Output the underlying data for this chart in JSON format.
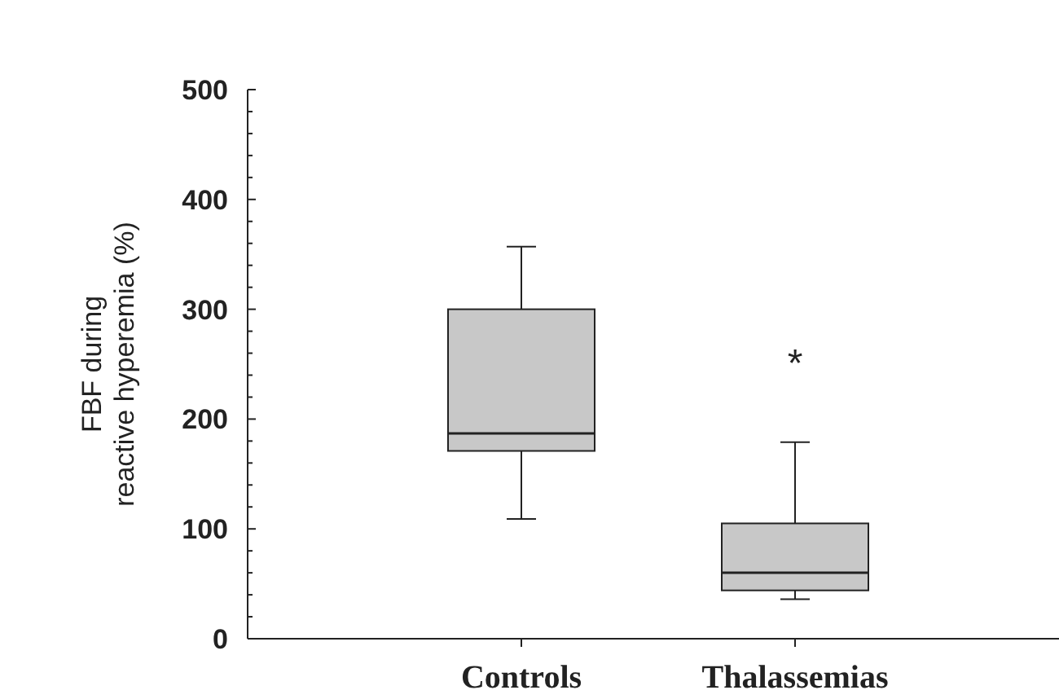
{
  "chart_data": {
    "type": "box",
    "ylabel": "FBF during\nreactive hyperemia (%)",
    "categories": [
      "Controls",
      "Thalassemias"
    ],
    "boxes": [
      {
        "low": 109,
        "q1": 171,
        "median": 187,
        "q3": 300,
        "high": 357
      },
      {
        "low": 36,
        "q1": 44,
        "median": 60,
        "q3": 105,
        "high": 179
      }
    ],
    "color": "#c8c8c8",
    "ylim": [
      0,
      500
    ],
    "yticks": [
      0,
      {
        "value": 20,
        "label": null
      },
      {
        "value": 40,
        "label": null
      },
      {
        "value": 60,
        "label": null
      },
      {
        "value": 80,
        "label": null
      },
      100,
      {
        "value": 120,
        "label": null
      },
      {
        "value": 140,
        "label": null
      },
      {
        "value": 160,
        "label": null
      },
      {
        "value": 180,
        "label": null
      },
      200,
      {
        "value": 220,
        "label": null
      },
      {
        "value": 240,
        "label": null
      },
      {
        "value": 260,
        "label": null
      },
      {
        "value": 280,
        "label": null
      },
      300,
      {
        "value": 320,
        "label": null
      },
      {
        "value": 340,
        "label": null
      },
      {
        "value": 360,
        "label": null
      },
      {
        "value": 380,
        "label": null
      },
      400,
      {
        "value": 420,
        "label": null
      },
      {
        "value": 440,
        "label": null
      },
      {
        "value": 460,
        "label": null
      },
      {
        "value": 480,
        "label": null
      },
      500
    ],
    "annotations": [
      "*"
    ]
  }
}
